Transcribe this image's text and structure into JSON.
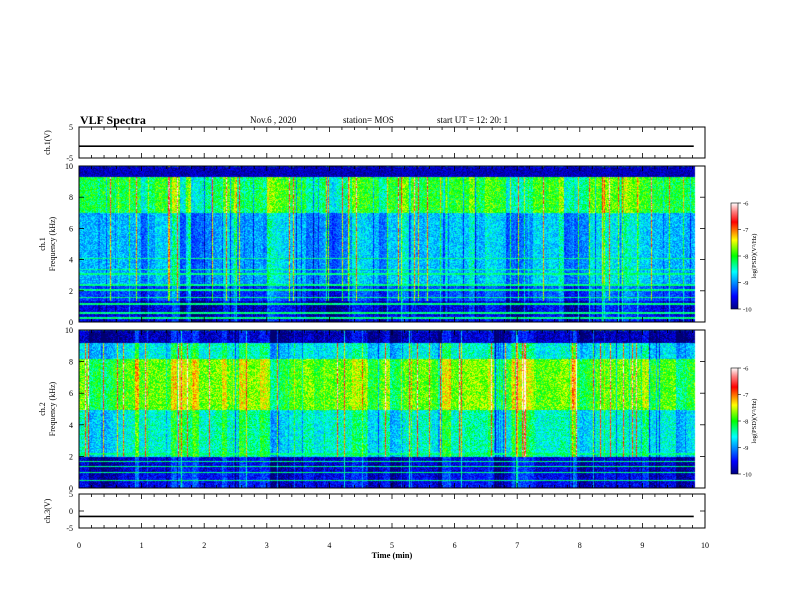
{
  "header": {
    "title": "VLF Spectra",
    "date": "Nov.6  , 2020",
    "station": "station= MOS",
    "start": "start  UT  =   12: 20: 1"
  },
  "chart_data": [
    {
      "type": "line",
      "panel": "ch1-waveform",
      "ylabel": "ch.1(V)",
      "ylim": [
        -5,
        5
      ],
      "yticks": [
        5,
        -5
      ],
      "series": [
        {
          "x": [
            0,
            9.82
          ],
          "y": [
            -1.2,
            -1.2
          ]
        }
      ]
    },
    {
      "type": "heatmap",
      "panel": "ch1-spectrogram",
      "ylabel_lines": [
        "ch.1",
        "Frequency  (kHz)"
      ],
      "ylim": [
        0,
        10
      ],
      "yticks": [
        0,
        2,
        4,
        6,
        8,
        10
      ],
      "xlim": [
        0,
        10
      ],
      "data_end_x": 9.82,
      "colorbar": {
        "label": "log(PSD)(V²/Hz)",
        "range": [
          -10,
          -6
        ],
        "ticks": [
          -6,
          -7,
          -8,
          -9,
          -10
        ]
      },
      "profile": {
        "base_level": -9.4,
        "bands": [
          {
            "from": 0,
            "to": 1.4,
            "level": -9.6
          },
          {
            "from": 1.4,
            "to": 2.4,
            "level": -9.2
          },
          {
            "from": 2.4,
            "to": 7.0,
            "level": -8.7
          },
          {
            "from": 7.0,
            "to": 9.3,
            "level": -8.0
          },
          {
            "from": 9.3,
            "to": 10,
            "level": -10
          }
        ],
        "lines_khz": [
          0.3,
          0.6,
          1.2,
          1.6,
          2.1,
          2.4,
          3.1,
          3.4,
          4.1
        ]
      }
    },
    {
      "type": "heatmap",
      "panel": "ch2-spectrogram",
      "ylabel_lines": [
        "ch.2",
        "Frequency  (kHz)"
      ],
      "ylim": [
        0,
        10
      ],
      "yticks": [
        0,
        2,
        4,
        6,
        8,
        10
      ],
      "xlim": [
        0,
        10
      ],
      "data_end_x": 9.82,
      "colorbar": {
        "label": "log(PSD)(V²/Hz)",
        "range": [
          -10,
          -6
        ],
        "ticks": [
          -6,
          -7,
          -8,
          -9,
          -10
        ]
      },
      "profile": {
        "base_level": -9.0,
        "bands": [
          {
            "from": 0,
            "to": 1.0,
            "level": -9.5
          },
          {
            "from": 1.0,
            "to": 2.0,
            "level": -9.6
          },
          {
            "from": 2.0,
            "to": 5.0,
            "level": -8.3
          },
          {
            "from": 5.0,
            "to": 8.2,
            "level": -7.7
          },
          {
            "from": 8.2,
            "to": 9.2,
            "level": -8.4
          },
          {
            "from": 9.2,
            "to": 10,
            "level": -9.7
          }
        ],
        "lines_khz": [
          0.5,
          1.0,
          1.4,
          1.7,
          2.2
        ]
      }
    },
    {
      "type": "line",
      "panel": "ch3-waveform",
      "ylabel": "ch.3(V)",
      "ylim": [
        -5,
        5
      ],
      "yticks": [
        5,
        0,
        -5
      ],
      "xlabel": "Time  (min)",
      "xlim": [
        0,
        10
      ],
      "xticks": [
        0,
        1,
        2,
        3,
        4,
        5,
        6,
        7,
        8,
        9,
        10
      ],
      "series": [
        {
          "x": [
            0,
            9.82
          ],
          "y": [
            -1.6,
            -1.6
          ]
        }
      ]
    }
  ]
}
